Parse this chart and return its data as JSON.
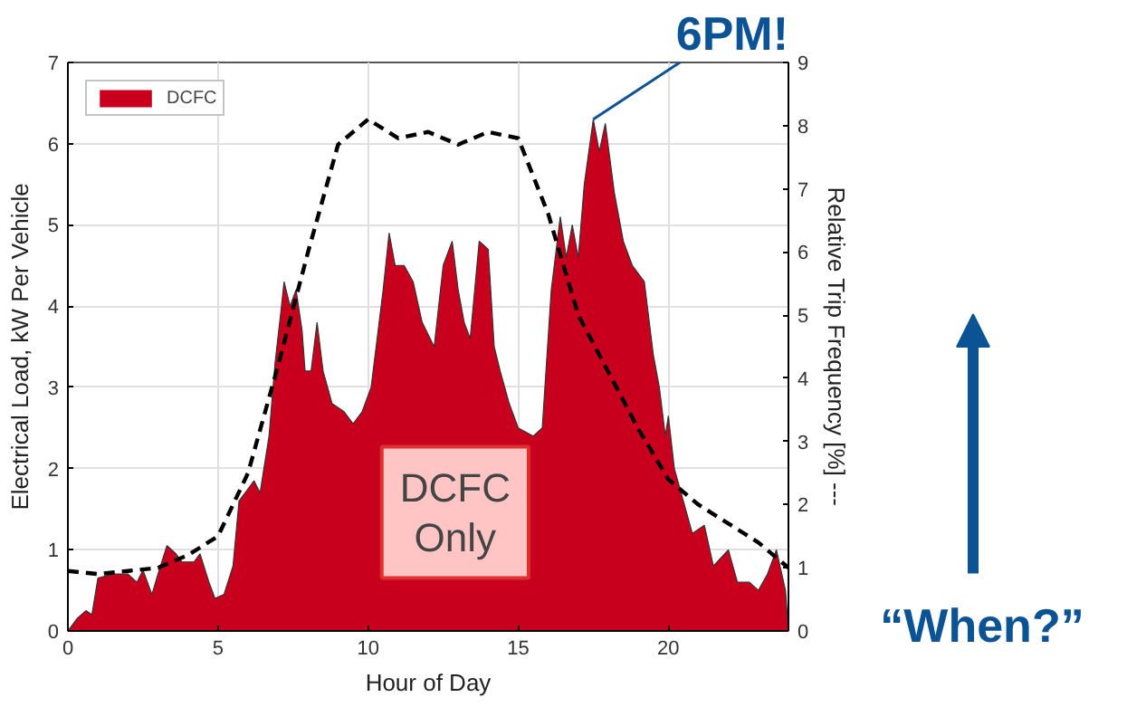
{
  "chart_data": {
    "type": "area",
    "xlabel": "Hour of Day",
    "ylabel": "Electrical Load, kW Per Vehicle",
    "y2label": "Relative Trip Frequency [%] ---",
    "xlim": [
      0,
      24
    ],
    "xticks": [
      0,
      5,
      10,
      15,
      20
    ],
    "ylim": [
      0,
      7
    ],
    "yticks": [
      0,
      1,
      2,
      3,
      4,
      5,
      6,
      7
    ],
    "y2lim": [
      0,
      9
    ],
    "y2ticks": [
      0,
      1,
      2,
      3,
      4,
      5,
      6,
      7,
      8,
      9
    ],
    "grid": true,
    "legend": "top left",
    "series": [
      {
        "name": "DCFC",
        "color": "#c8001e",
        "x": [
          0,
          0.3,
          0.6,
          0.8,
          1.0,
          1.5,
          2.0,
          2.3,
          2.5,
          2.8,
          3.0,
          3.3,
          3.6,
          3.8,
          4.2,
          4.4,
          4.7,
          4.9,
          5.2,
          5.5,
          5.7,
          6.0,
          6.2,
          6.4,
          6.7,
          6.9,
          7.1,
          7.2,
          7.4,
          7.6,
          7.8,
          7.9,
          8.1,
          8.3,
          8.5,
          8.8,
          9.2,
          9.5,
          9.8,
          10.1,
          10.5,
          10.7,
          10.9,
          11.2,
          11.5,
          11.8,
          12.2,
          12.5,
          12.8,
          13.0,
          13.2,
          13.4,
          13.7,
          14.0,
          14.2,
          14.4,
          14.7,
          15.0,
          15.5,
          15.8,
          16.1,
          16.4,
          16.6,
          16.8,
          17.0,
          17.2,
          17.5,
          17.7,
          17.9,
          18.2,
          18.5,
          18.8,
          19.2,
          19.5,
          19.7,
          19.9,
          20.0,
          20.2,
          20.5,
          20.8,
          21.2,
          21.5,
          22.0,
          22.3,
          22.7,
          23.0,
          23.3,
          23.6,
          23.9,
          24.0
        ],
        "values": [
          0,
          0.15,
          0.25,
          0.2,
          0.65,
          0.7,
          0.7,
          0.6,
          0.75,
          0.45,
          0.7,
          1.05,
          0.95,
          0.85,
          0.85,
          0.95,
          0.6,
          0.4,
          0.45,
          0.8,
          1.6,
          1.75,
          1.85,
          1.7,
          2.4,
          3.3,
          3.95,
          4.3,
          4.0,
          4.2,
          3.7,
          3.2,
          3.2,
          3.8,
          3.2,
          2.8,
          2.7,
          2.55,
          2.7,
          3.0,
          4.2,
          4.9,
          4.5,
          4.5,
          4.3,
          3.8,
          3.5,
          4.5,
          4.8,
          4.2,
          3.8,
          3.6,
          4.8,
          4.7,
          3.5,
          3.2,
          2.8,
          2.5,
          2.4,
          2.5,
          4.2,
          5.1,
          4.6,
          5.0,
          4.6,
          5.5,
          6.3,
          5.9,
          6.25,
          5.4,
          4.8,
          4.5,
          4.3,
          3.4,
          3.0,
          2.4,
          2.65,
          2.0,
          1.6,
          1.2,
          1.3,
          0.8,
          1.0,
          0.6,
          0.6,
          0.5,
          0.7,
          1.0,
          0.5,
          0
        ]
      },
      {
        "type": "line",
        "axis": "y2",
        "color": "#000000",
        "line_style": "dashed",
        "x": [
          0,
          1,
          2,
          3,
          4,
          5,
          6,
          7,
          8,
          9,
          10,
          11,
          12,
          13,
          14,
          15,
          16,
          17,
          18,
          19,
          20,
          21,
          22,
          23,
          24
        ],
        "values": [
          0.95,
          0.9,
          0.95,
          1.0,
          1.2,
          1.5,
          2.5,
          4.2,
          6.0,
          7.7,
          8.1,
          7.8,
          7.9,
          7.7,
          7.9,
          7.8,
          6.6,
          5.0,
          4.1,
          3.2,
          2.4,
          2.0,
          1.7,
          1.4,
          1.0
        ]
      }
    ],
    "annotations": [
      {
        "text": "6PM!",
        "x": 17.5,
        "y": 6.3
      },
      "DCFC Only",
      "“When?”"
    ]
  }
}
